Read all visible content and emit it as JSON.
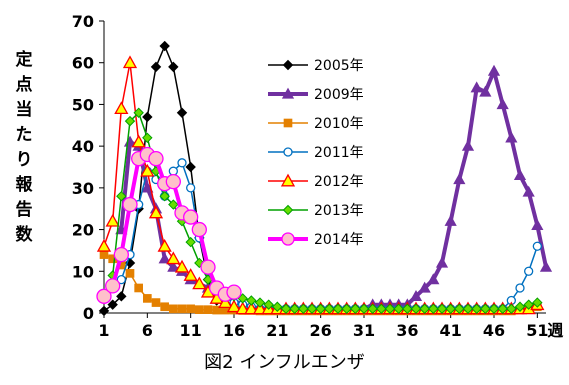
{
  "chart_data": {
    "type": "line",
    "caption": "図2 インフルエンザ",
    "ylabel": "定点当たり報告数",
    "xlabel": "週",
    "xlim": [
      1,
      52
    ],
    "ylim": [
      0,
      70
    ],
    "x_ticks": [
      "1",
      "6",
      "11",
      "16",
      "21",
      "26",
      "31",
      "36",
      "41",
      "46",
      "51"
    ],
    "y_ticks": [
      "0",
      "10",
      "20",
      "30",
      "40",
      "50",
      "60",
      "70"
    ],
    "legend_position": "center",
    "series": [
      {
        "name": "2005年",
        "color": "#000000",
        "marker": "diamond",
        "fill": "#000000",
        "stroke_width": 1.5,
        "x": [
          1,
          2,
          3,
          4,
          5,
          6,
          7,
          8,
          9,
          10,
          11,
          12,
          13,
          14,
          15,
          16
        ],
        "y": [
          0.5,
          2,
          4,
          12,
          25,
          47,
          59,
          64,
          59,
          48,
          35,
          18,
          8,
          3,
          1.5,
          1
        ]
      },
      {
        "name": "2009年",
        "color": "#7030A0",
        "marker": "triangle",
        "fill": "#7030A0",
        "stroke_width": 4,
        "x": [
          3,
          4,
          5,
          6,
          7,
          8,
          9,
          10,
          11,
          12,
          13,
          14,
          15,
          16,
          17,
          18,
          19,
          20,
          21,
          22,
          23,
          24,
          25,
          26,
          27,
          28,
          29,
          30,
          31,
          32,
          33,
          34,
          35,
          36,
          37,
          38,
          39,
          40,
          41,
          42,
          43,
          44,
          45,
          46,
          47,
          48,
          49,
          50,
          51,
          52
        ],
        "y": [
          20,
          41,
          40,
          30,
          25,
          13,
          11,
          10,
          8,
          7,
          6,
          5,
          4,
          3,
          2,
          1.5,
          1,
          1,
          1,
          1,
          1,
          1,
          1,
          1,
          1,
          1,
          1,
          1,
          1,
          2,
          2,
          2,
          2,
          2,
          4,
          6,
          8,
          12,
          22,
          32,
          40,
          54,
          53,
          58,
          50,
          42,
          33,
          29,
          21,
          11
        ]
      },
      {
        "name": "2010年",
        "color": "#E48000",
        "marker": "square",
        "fill": "#E48000",
        "stroke_width": 1.5,
        "x": [
          1,
          2,
          3,
          4,
          5,
          6,
          7,
          8,
          9,
          10,
          11,
          12,
          13,
          14,
          15,
          16,
          17,
          18,
          19,
          20,
          21,
          22,
          23,
          24,
          25,
          26,
          27,
          28,
          29,
          30,
          31,
          32,
          33,
          34,
          35,
          36,
          37,
          38,
          39,
          40,
          41,
          42,
          43,
          44,
          45,
          46,
          47,
          48,
          49,
          50,
          51
        ],
        "y": [
          14,
          13,
          11.5,
          9.5,
          6,
          3.5,
          2.5,
          1.5,
          1,
          1,
          1,
          0.8,
          0.8,
          0.7,
          0.7,
          0.7,
          0.6,
          0.6,
          0.5,
          0.5,
          0.5,
          0.5,
          0.5,
          0.5,
          0.5,
          0.5,
          0.5,
          0.5,
          0.5,
          0.5,
          0.5,
          0.5,
          0.5,
          0.5,
          0.5,
          0.5,
          0.5,
          0.5,
          0.5,
          0.5,
          0.5,
          0.5,
          0.5,
          0.5,
          0.5,
          0.5,
          0.5,
          0.5,
          0.7,
          1,
          1.5
        ]
      },
      {
        "name": "2011年",
        "color": "#0070C0",
        "marker": "circle",
        "fill": "#FFFFFF",
        "stroke_width": 1.5,
        "x": [
          3,
          4,
          5,
          6,
          7,
          8,
          9,
          10,
          11,
          12,
          13,
          14,
          15,
          16,
          17,
          18,
          19,
          20,
          21,
          22,
          23,
          24,
          25,
          26,
          27,
          28,
          29,
          30,
          31,
          32,
          33,
          34,
          35,
          36,
          37,
          38,
          39,
          40,
          41,
          42,
          43,
          44,
          45,
          46,
          47,
          48,
          49,
          50,
          51
        ],
        "y": [
          8,
          14,
          26,
          34,
          32,
          28,
          34,
          36,
          30,
          18,
          10,
          6,
          4,
          2.5,
          2,
          1.5,
          1,
          1,
          1,
          1,
          1,
          1,
          1,
          1,
          1,
          1,
          1,
          1,
          1,
          1,
          1,
          1,
          1,
          1,
          1,
          1,
          1,
          1,
          1,
          1,
          1,
          1,
          1,
          1,
          1,
          3,
          6,
          10,
          16
        ]
      },
      {
        "name": "2012年",
        "color": "#FF0000",
        "marker": "triangle",
        "fill": "#FFFF00",
        "stroke_width": 1.5,
        "x": [
          1,
          2,
          3,
          4,
          5,
          6,
          7,
          8,
          9,
          10,
          11,
          12,
          13,
          14,
          15,
          16,
          17,
          18,
          19,
          20,
          21,
          22,
          23,
          24,
          25,
          26,
          27,
          28,
          29,
          30,
          31,
          32,
          33,
          34,
          35,
          36,
          37,
          38,
          39,
          40,
          41,
          42,
          43,
          44,
          45,
          46,
          47,
          48,
          49,
          50,
          51
        ],
        "y": [
          16,
          22,
          49,
          60,
          41,
          34,
          24,
          16,
          13,
          11,
          9,
          7,
          5,
          3.5,
          2.5,
          1.5,
          1,
          1,
          1,
          1,
          1,
          1,
          1,
          1,
          1,
          1,
          1,
          1,
          1,
          1,
          1,
          1,
          1,
          1,
          1,
          1,
          1,
          1,
          1,
          1,
          1,
          1,
          1,
          1,
          1,
          1,
          1,
          1,
          1,
          1,
          2
        ]
      },
      {
        "name": "2013年",
        "color": "#00A000",
        "marker": "diamond",
        "fill": "#66DD00",
        "stroke_width": 1.5,
        "x": [
          2,
          3,
          4,
          5,
          6,
          7,
          8,
          9,
          10,
          11,
          12,
          13,
          14,
          15,
          16,
          17,
          18,
          19,
          20,
          21,
          22,
          23,
          24,
          25,
          26,
          27,
          28,
          29,
          30,
          31,
          32,
          33,
          34,
          35,
          36,
          37,
          38,
          39,
          40,
          41,
          42,
          43,
          44,
          45,
          46,
          47,
          48,
          49,
          50,
          51
        ],
        "y": [
          9,
          28,
          46,
          48,
          42,
          34,
          28,
          26,
          22,
          17,
          12,
          8,
          6,
          5,
          4,
          3.5,
          3,
          2.5,
          2,
          1.5,
          1,
          1,
          1,
          1,
          1,
          1,
          1,
          1,
          1,
          1,
          1,
          1,
          1,
          1,
          1,
          1,
          1,
          1,
          1,
          1,
          1,
          1,
          1,
          1,
          1,
          1,
          1,
          1.5,
          2,
          2.5
        ]
      },
      {
        "name": "2014年",
        "color": "#FF00FF",
        "marker": "circle",
        "fill": "#FFC0CB",
        "stroke_width": 4,
        "x": [
          1,
          2,
          3,
          4,
          5,
          6,
          7,
          8,
          9,
          10,
          11,
          12,
          13,
          14,
          15,
          16
        ],
        "y": [
          4,
          6.5,
          14,
          26,
          37,
          38,
          37,
          31,
          31.5,
          24,
          23,
          20,
          11,
          6,
          4.5,
          5
        ]
      }
    ]
  }
}
